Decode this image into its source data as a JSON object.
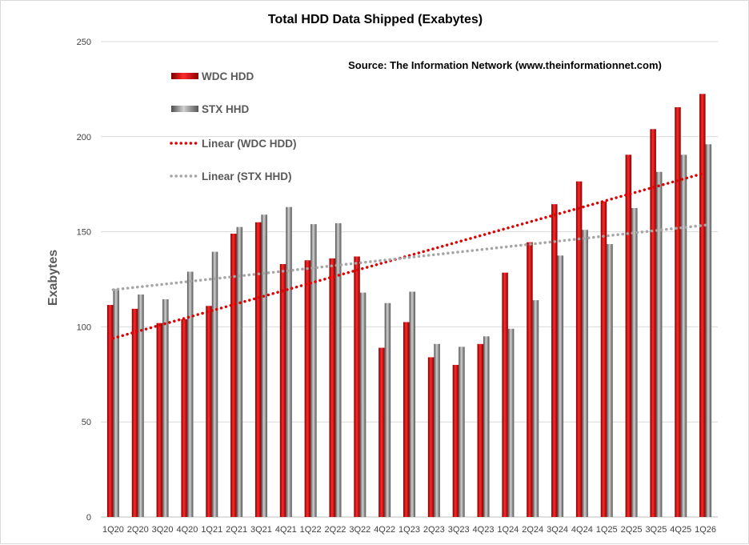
{
  "chart_data": {
    "type": "bar",
    "title": "Total HDD Data Shipped (Exabytes)",
    "source": "Source: The Information Network (www.theinformationnet.com)",
    "ylabel": "Exabytes",
    "xlabel": "",
    "ylim": [
      0,
      250
    ],
    "yticks": [
      "0",
      "50",
      "100",
      "150",
      "200",
      "250"
    ],
    "grid": true,
    "legend_position": "top-left",
    "categories": [
      "1Q20",
      "2Q20",
      "3Q20",
      "4Q20",
      "1Q21",
      "2Q21",
      "3Q21",
      "4Q21",
      "1Q22",
      "2Q22",
      "3Q22",
      "4Q22",
      "1Q23",
      "2Q23",
      "3Q23",
      "4Q23",
      "1Q24",
      "2Q24",
      "3Q24",
      "4Q24",
      "1Q25",
      "2Q25",
      "3Q25",
      "4Q25",
      "1Q26"
    ],
    "series": [
      {
        "name": "WDC HDD",
        "color": "#c00000",
        "values": [
          111.5,
          109.5,
          102,
          104,
          111,
          149,
          155,
          133,
          135,
          136,
          137,
          89,
          102.5,
          84,
          80,
          91,
          128.5,
          144.5,
          164.5,
          176.5,
          166,
          190.5,
          204,
          215.5,
          222.5
        ]
      },
      {
        "name": "STX HHD",
        "color": "#808080",
        "values": [
          120,
          117,
          114.5,
          129,
          139.5,
          152.5,
          159,
          163,
          154,
          154.5,
          118,
          112.5,
          118.5,
          91,
          89.5,
          95,
          99,
          114,
          137.5,
          151,
          143.5,
          162.5,
          181.5,
          190.5,
          196
        ]
      }
    ],
    "trendlines": [
      {
        "name": "Linear (WDC HDD)",
        "color": "#e00000",
        "start": 94,
        "end": 181
      },
      {
        "name": "Linear (STX HHD)",
        "color": "#a6a6a6",
        "start": 119.5,
        "end": 153.5
      }
    ]
  }
}
